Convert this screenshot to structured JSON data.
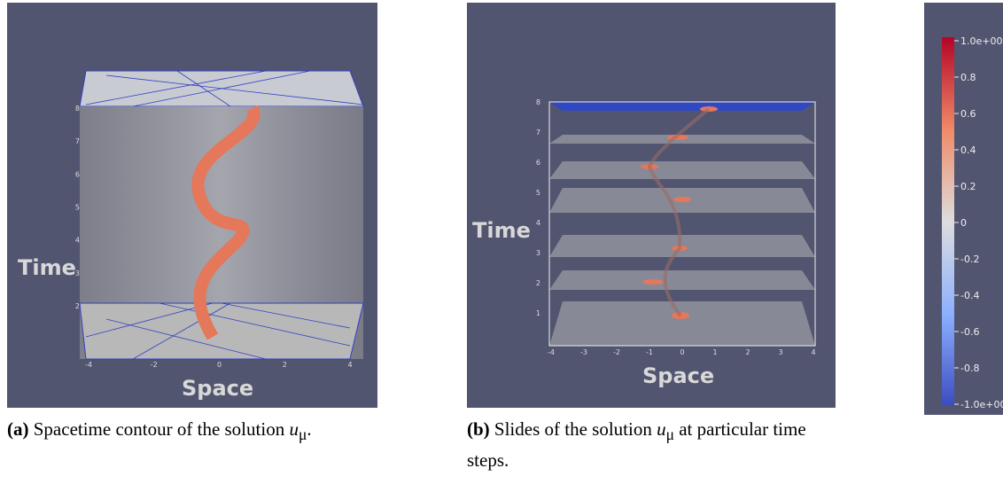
{
  "figure": {
    "panels": [
      {
        "axis_labels": {
          "x": "Space",
          "y": "Time"
        },
        "x_tick_labels": [
          "-4",
          "-2",
          "0",
          "2",
          "4"
        ],
        "y_tick_labels": [
          "2",
          "3",
          "4",
          "5",
          "6",
          "7",
          "8"
        ],
        "caption": {
          "label": "(a)",
          "text": "Spacetime contour of the solution ",
          "var": "u",
          "sub": "μ",
          "end": "."
        }
      },
      {
        "axis_labels": {
          "x": "Space",
          "y": "Time"
        },
        "x_tick_labels": [
          "-4",
          "-3",
          "-2",
          "-1",
          "0",
          "1",
          "2",
          "3",
          "4"
        ],
        "y_tick_labels": [
          "1",
          "2",
          "3",
          "4",
          "5",
          "6",
          "7",
          "8"
        ],
        "caption": {
          "label": "(b)",
          "text": "Slides of the solution ",
          "var": "u",
          "sub": "μ",
          "end": " at particular time steps."
        }
      }
    ],
    "colorbar": {
      "tick_labels": [
        "1.0e+00",
        "0.8",
        "0.6",
        "0.4",
        "0.2",
        "0",
        "-0.2",
        "-0.4",
        "-0.6",
        "-0.8",
        "-1.0e+00"
      ]
    }
  }
}
